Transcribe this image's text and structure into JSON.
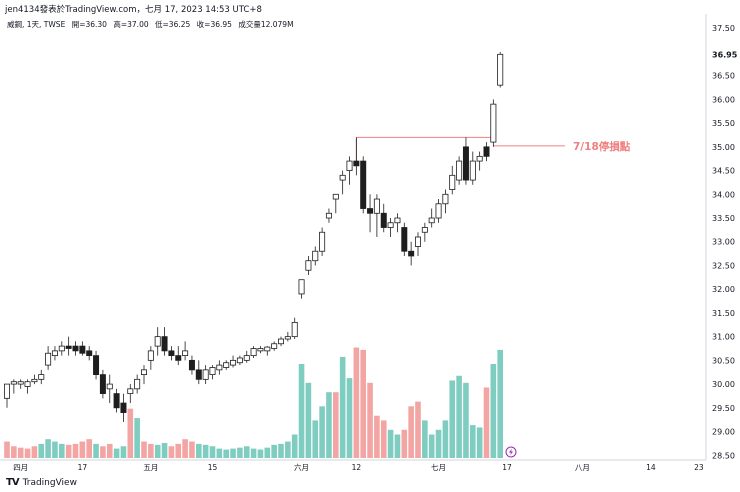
{
  "header": {
    "publish_line": "jen4134發表於TradingView.com，七月 17, 2023 14:53 UTC+8"
  },
  "symbol": {
    "name": "威鋼, 1天, TWSE",
    "open": "開=36.30",
    "high": "高=37.00",
    "low": "低=36.25",
    "close": "收=36.95",
    "volume": "成交量12.079M"
  },
  "annotation": {
    "text": "7/18停損點",
    "color": "#f08080"
  },
  "footer": {
    "brand": "TradingView",
    "logo": "TV"
  },
  "colors": {
    "up_volume": "#7fcdc0",
    "down_volume": "#f2a5a3",
    "candle_down": "#1e1e1e",
    "candle_up": "#ffffff",
    "last_price_label_bg": "#ffffff"
  },
  "chart_data": {
    "type": "candlestick",
    "price_axis_ticks": [
      "37.50",
      "36.95",
      "36.50",
      "36.00",
      "35.50",
      "35.00",
      "34.50",
      "34.00",
      "33.50",
      "33.00",
      "32.50",
      "32.00",
      "31.50",
      "31.00",
      "30.50",
      "30.00",
      "29.50",
      "29.00",
      "28.50"
    ],
    "last_price": "36.95",
    "time_axis_ticks": [
      "四月",
      "17",
      "五月",
      "15",
      "六月",
      "12",
      "七月",
      "17",
      "八月",
      "14",
      "23"
    ],
    "ylim": [
      28.4,
      37.8
    ],
    "stop_level": 35.02,
    "resistance_level": 35.2,
    "candles": [
      [
        29.7,
        30.0,
        29.5,
        30.0
      ],
      [
        30.0,
        30.1,
        29.8,
        30.05
      ],
      [
        30.0,
        30.1,
        29.9,
        30.05
      ],
      [
        29.95,
        30.1,
        29.8,
        30.05
      ],
      [
        30.05,
        30.2,
        30.0,
        30.1
      ],
      [
        30.1,
        30.3,
        30.0,
        30.2
      ],
      [
        30.4,
        30.8,
        30.3,
        30.65
      ],
      [
        30.6,
        30.8,
        30.5,
        30.7
      ],
      [
        30.7,
        30.9,
        30.6,
        30.8
      ],
      [
        30.8,
        31.0,
        30.6,
        30.75
      ],
      [
        30.8,
        30.9,
        30.6,
        30.7
      ],
      [
        30.8,
        30.9,
        30.6,
        30.65
      ],
      [
        30.7,
        30.8,
        30.5,
        30.6
      ],
      [
        30.6,
        30.7,
        30.1,
        30.2
      ],
      [
        30.2,
        30.3,
        29.7,
        29.8
      ],
      [
        29.9,
        30.2,
        29.6,
        30.0
      ],
      [
        29.8,
        29.9,
        29.4,
        29.5
      ],
      [
        29.6,
        29.8,
        29.2,
        29.4
      ],
      [
        29.8,
        30.0,
        29.6,
        29.9
      ],
      [
        29.9,
        30.2,
        29.8,
        30.1
      ],
      [
        30.2,
        30.4,
        30.0,
        30.3
      ],
      [
        30.5,
        30.8,
        30.3,
        30.7
      ],
      [
        30.8,
        31.2,
        30.6,
        31.0
      ],
      [
        31.0,
        31.2,
        30.6,
        30.7
      ],
      [
        30.7,
        30.8,
        30.5,
        30.6
      ],
      [
        30.6,
        30.8,
        30.4,
        30.5
      ],
      [
        30.6,
        30.9,
        30.5,
        30.7
      ],
      [
        30.5,
        30.6,
        30.2,
        30.3
      ],
      [
        30.3,
        30.5,
        30.0,
        30.1
      ],
      [
        30.1,
        30.4,
        30.0,
        30.3
      ],
      [
        30.2,
        30.4,
        30.1,
        30.35
      ],
      [
        30.3,
        30.5,
        30.2,
        30.4
      ],
      [
        30.35,
        30.5,
        30.3,
        30.45
      ],
      [
        30.4,
        30.6,
        30.35,
        30.5
      ],
      [
        30.45,
        30.6,
        30.4,
        30.55
      ],
      [
        30.5,
        30.7,
        30.45,
        30.6
      ],
      [
        30.6,
        30.8,
        30.55,
        30.75
      ],
      [
        30.7,
        30.8,
        30.65,
        30.75
      ],
      [
        30.7,
        30.8,
        30.6,
        30.78
      ],
      [
        30.75,
        30.9,
        30.7,
        30.85
      ],
      [
        30.85,
        31.0,
        30.8,
        30.95
      ],
      [
        30.95,
        31.1,
        30.9,
        31.0
      ],
      [
        31.0,
        31.4,
        30.95,
        31.3
      ],
      [
        31.9,
        32.2,
        31.8,
        32.2
      ],
      [
        32.4,
        32.7,
        32.3,
        32.6
      ],
      [
        32.6,
        32.9,
        32.5,
        32.8
      ],
      [
        32.8,
        33.3,
        32.7,
        33.2
      ],
      [
        33.5,
        33.7,
        33.4,
        33.6
      ],
      [
        33.9,
        34.0,
        33.6,
        34.0
      ],
      [
        34.3,
        34.5,
        34.0,
        34.4
      ],
      [
        34.5,
        34.8,
        34.2,
        34.7
      ],
      [
        34.7,
        35.2,
        34.4,
        34.6
      ],
      [
        34.7,
        34.8,
        33.6,
        33.7
      ],
      [
        33.7,
        34.0,
        33.2,
        33.6
      ],
      [
        33.6,
        34.0,
        33.1,
        33.9
      ],
      [
        33.6,
        33.8,
        33.2,
        33.3
      ],
      [
        33.3,
        33.5,
        33.1,
        33.4
      ],
      [
        33.4,
        33.6,
        33.2,
        33.5
      ],
      [
        33.3,
        33.4,
        32.7,
        32.8
      ],
      [
        32.8,
        33.0,
        32.5,
        32.7
      ],
      [
        32.9,
        33.2,
        32.7,
        33.1
      ],
      [
        33.2,
        33.4,
        33.0,
        33.3
      ],
      [
        33.4,
        33.7,
        33.3,
        33.5
      ],
      [
        33.5,
        33.9,
        33.4,
        33.8
      ],
      [
        33.8,
        34.1,
        33.6,
        34.0
      ],
      [
        34.1,
        34.6,
        34.0,
        34.4
      ],
      [
        34.3,
        34.8,
        34.2,
        34.7
      ],
      [
        35.0,
        35.2,
        34.2,
        34.3
      ],
      [
        34.3,
        34.9,
        34.2,
        34.7
      ],
      [
        34.7,
        34.9,
        34.5,
        34.8
      ],
      [
        35.0,
        35.1,
        34.7,
        34.8
      ],
      [
        35.1,
        36.0,
        35.0,
        35.9
      ],
      [
        36.3,
        37.0,
        36.25,
        36.95
      ]
    ],
    "volumes": [
      [
        0.35,
        "down"
      ],
      [
        0.25,
        "down"
      ],
      [
        0.22,
        "down"
      ],
      [
        0.2,
        "down"
      ],
      [
        0.25,
        "down"
      ],
      [
        0.3,
        "up"
      ],
      [
        0.4,
        "up"
      ],
      [
        0.35,
        "up"
      ],
      [
        0.3,
        "up"
      ],
      [
        0.28,
        "down"
      ],
      [
        0.3,
        "down"
      ],
      [
        0.35,
        "down"
      ],
      [
        0.4,
        "down"
      ],
      [
        0.3,
        "up"
      ],
      [
        0.25,
        "down"
      ],
      [
        0.3,
        "down"
      ],
      [
        0.2,
        "up"
      ],
      [
        0.25,
        "up"
      ],
      [
        1.05,
        "down"
      ],
      [
        0.85,
        "up"
      ],
      [
        0.35,
        "down"
      ],
      [
        0.3,
        "down"
      ],
      [
        0.28,
        "up"
      ],
      [
        0.32,
        "up"
      ],
      [
        0.25,
        "down"
      ],
      [
        0.3,
        "down"
      ],
      [
        0.4,
        "down"
      ],
      [
        0.35,
        "down"
      ],
      [
        0.3,
        "up"
      ],
      [
        0.28,
        "up"
      ],
      [
        0.25,
        "up"
      ],
      [
        0.2,
        "up"
      ],
      [
        0.18,
        "up"
      ],
      [
        0.2,
        "up"
      ],
      [
        0.22,
        "up"
      ],
      [
        0.25,
        "up"
      ],
      [
        0.2,
        "up"
      ],
      [
        0.18,
        "up"
      ],
      [
        0.22,
        "up"
      ],
      [
        0.28,
        "up"
      ],
      [
        0.3,
        "up"
      ],
      [
        0.35,
        "up"
      ],
      [
        0.5,
        "up"
      ],
      [
        2.0,
        "up"
      ],
      [
        1.6,
        "up"
      ],
      [
        0.8,
        "up"
      ],
      [
        1.1,
        "up"
      ],
      [
        1.4,
        "up"
      ],
      [
        1.4,
        "down"
      ],
      [
        2.15,
        "up"
      ],
      [
        1.7,
        "up"
      ],
      [
        2.35,
        "down"
      ],
      [
        2.3,
        "down"
      ],
      [
        1.6,
        "down"
      ],
      [
        0.9,
        "down"
      ],
      [
        0.8,
        "down"
      ],
      [
        0.6,
        "up"
      ],
      [
        0.5,
        "up"
      ],
      [
        0.6,
        "down"
      ],
      [
        1.1,
        "down"
      ],
      [
        1.2,
        "down"
      ],
      [
        0.8,
        "up"
      ],
      [
        0.5,
        "up"
      ],
      [
        0.6,
        "up"
      ],
      [
        0.8,
        "up"
      ],
      [
        1.65,
        "up"
      ],
      [
        1.75,
        "up"
      ],
      [
        1.6,
        "up"
      ],
      [
        0.7,
        "up"
      ],
      [
        0.65,
        "up"
      ],
      [
        1.5,
        "down"
      ],
      [
        2.0,
        "up"
      ],
      [
        2.3,
        "up"
      ]
    ]
  }
}
